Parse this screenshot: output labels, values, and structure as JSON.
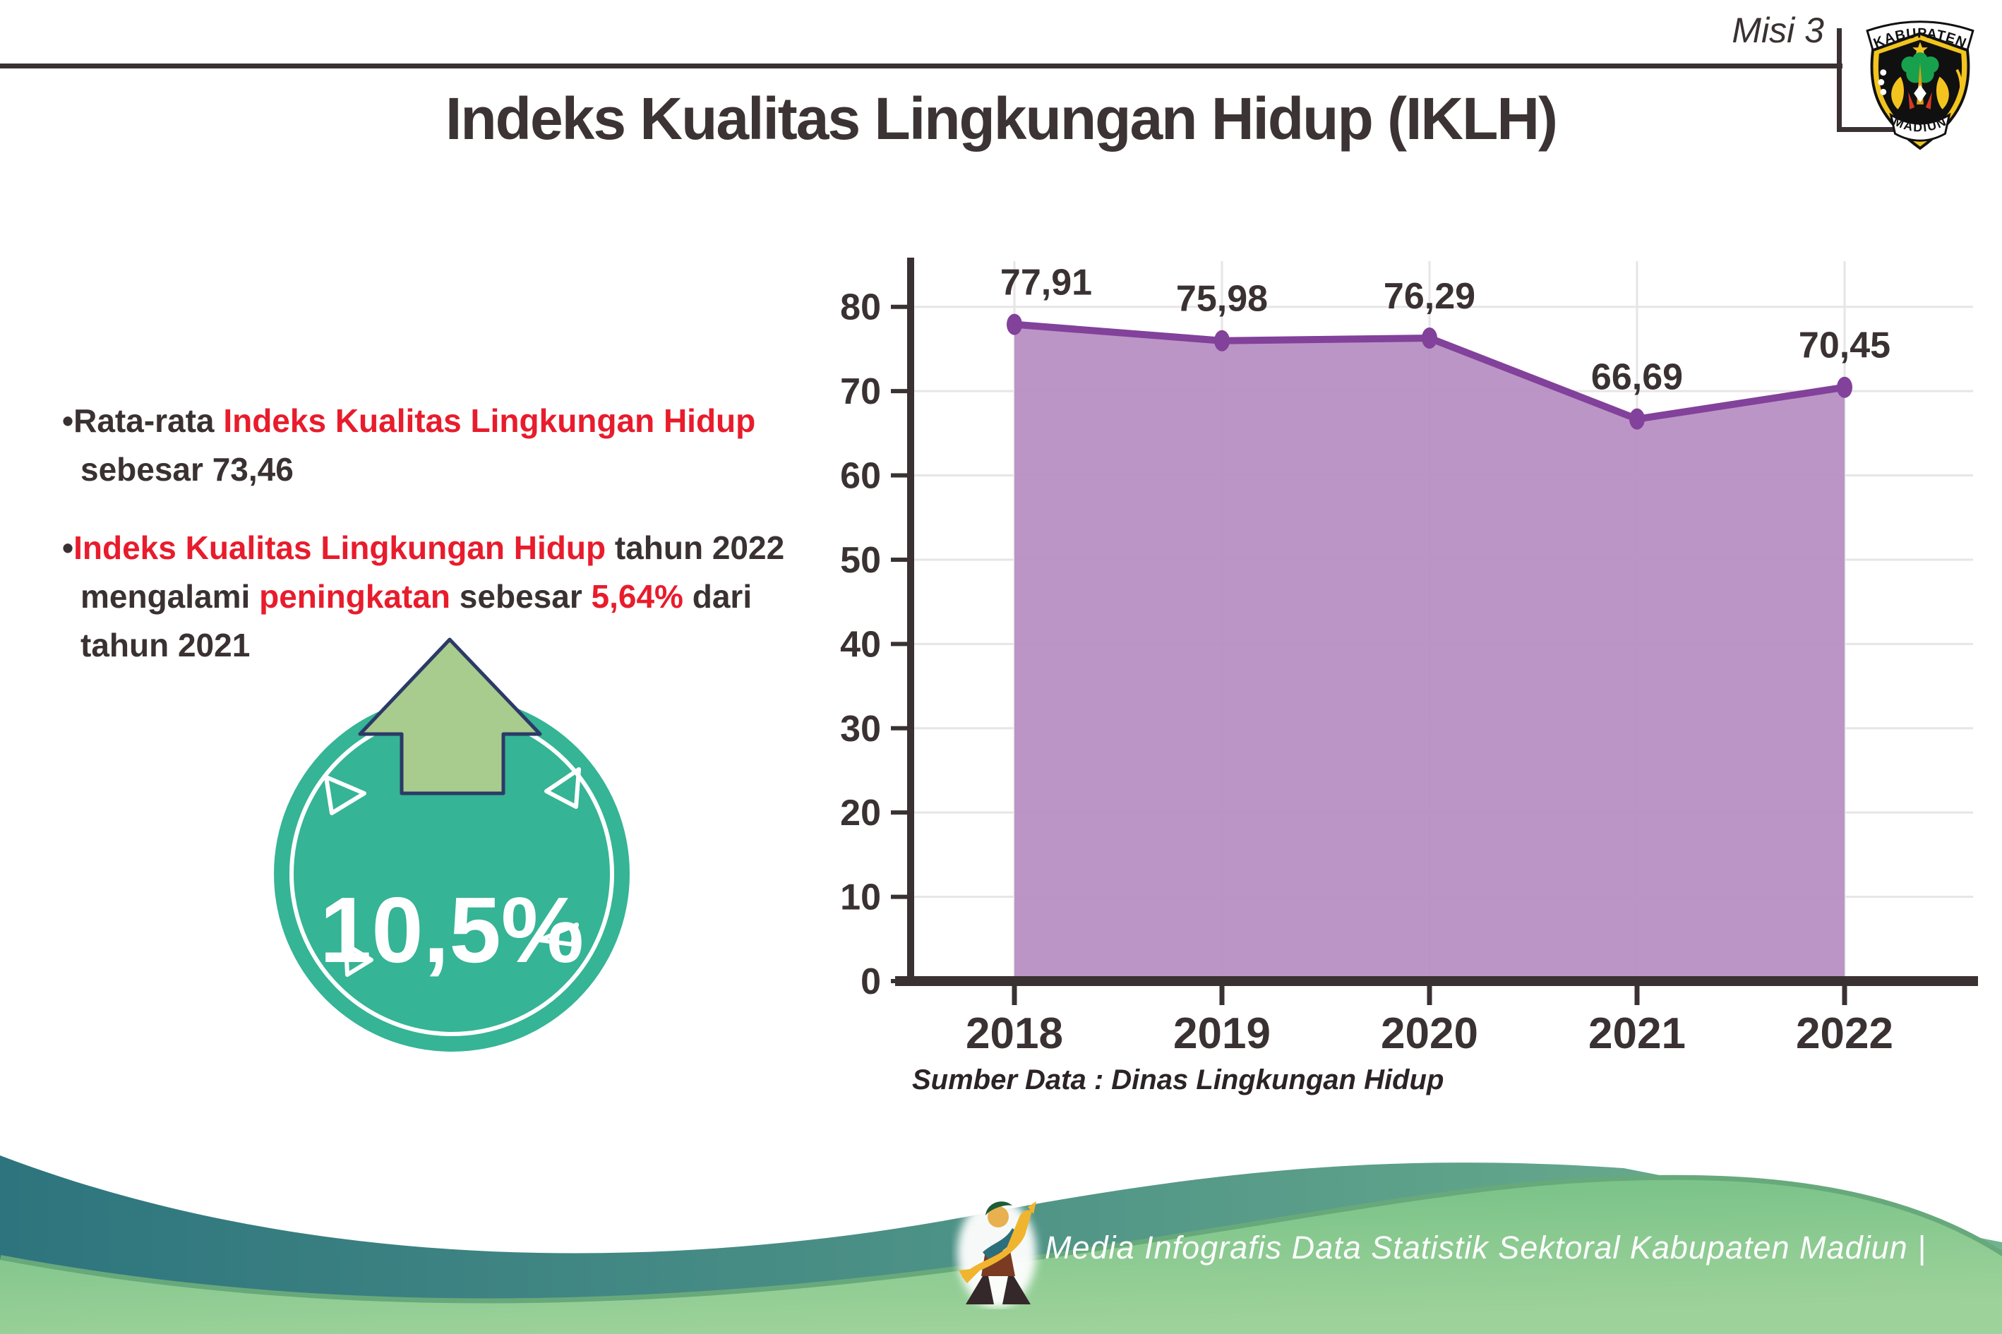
{
  "header": {
    "misi_label": "Misi 3",
    "title": "Indeks Kualitas Lingkungan Hidup (IKLH)",
    "logo": {
      "top_text": "KABUPATEN",
      "bottom_text": "MADIUN"
    }
  },
  "bullets": [
    {
      "marker": "•",
      "segments": [
        {
          "text": "Rata-rata ",
          "color": "dark"
        },
        {
          "text": "Indeks Kualitas Lingkungan Hidup",
          "color": "red"
        },
        {
          "br": true
        },
        {
          "text": "sebesar 73,46",
          "color": "dark"
        }
      ]
    },
    {
      "marker": "•",
      "segments": [
        {
          "text": "Indeks Kualitas Lingkungan Hidup",
          "color": "red"
        },
        {
          "text": " tahun 2022",
          "color": "dark"
        },
        {
          "br": true
        },
        {
          "text": "mengalami ",
          "color": "dark"
        },
        {
          "text": "peningkatan",
          "color": "red"
        },
        {
          "text": " sebesar ",
          "color": "dark"
        },
        {
          "text": "5,64%",
          "color": "red"
        },
        {
          "text": " dari",
          "color": "dark"
        },
        {
          "br": true
        },
        {
          "text": "tahun 2021",
          "color": "dark"
        }
      ]
    }
  ],
  "badge": {
    "value": "10,5%",
    "icon": "up-arrow"
  },
  "chart_data": {
    "type": "area",
    "title": "Indeks Kualitas Lingkungan Hidup (IKLH)",
    "x": [
      "2018",
      "2019",
      "2020",
      "2021",
      "2022"
    ],
    "values": [
      77.91,
      75.98,
      76.29,
      66.69,
      70.45
    ],
    "value_labels": [
      "77,91",
      "75,98",
      "76,29",
      "66,69",
      "70,45"
    ],
    "yticks": [
      0,
      10,
      20,
      30,
      40,
      50,
      60,
      70,
      80
    ],
    "ylim": [
      0,
      85
    ],
    "grid": true,
    "legend": "none",
    "source": "Sumber Data : Dinas Lingkungan Hidup"
  },
  "footer": {
    "credit": "Media Infografis Data Statistik Sektoral Kabupaten Madiun |"
  },
  "colors": {
    "dark": "#3a3132",
    "red": "#e81c2c",
    "line_purple": "#82419a",
    "fill_purple": "#b78fc3",
    "grid": "#e7e5e5",
    "badge_teal": "#35b496",
    "arrow_green": "#a8cb8e",
    "arrow_outline_navy": "#2b3a66",
    "footer_teal_dark": "#2d747e",
    "footer_teal_light": "#71b38f",
    "footer_green_top": "#6fbe83",
    "footer_green_bottom": "#9dd29a",
    "footer_rim_green": "#67a97b"
  }
}
